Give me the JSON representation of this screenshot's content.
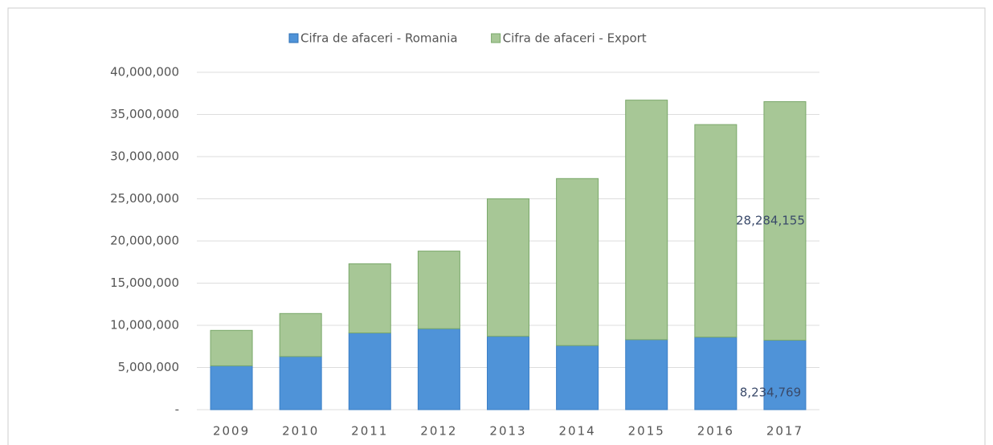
{
  "chart_data": {
    "type": "stacked_bar",
    "categories": [
      "2009",
      "2010",
      "2011",
      "2012",
      "2013",
      "2014",
      "2015",
      "2016",
      "2017"
    ],
    "series": [
      {
        "name": "Cifra de afaceri - Romania",
        "color": "#4f93d8",
        "values": [
          5200000,
          6300000,
          9100000,
          9600000,
          8700000,
          7600000,
          8300000,
          8600000,
          8234769
        ],
        "value_labels": [
          null,
          null,
          null,
          null,
          null,
          null,
          null,
          null,
          "8,234,769"
        ]
      },
      {
        "name": "Cifra de afaceri - Export",
        "color": "#a7c796",
        "values": [
          4200000,
          5100000,
          8200000,
          9200000,
          16300000,
          19800000,
          28400000,
          25200000,
          28284155
        ],
        "value_labels": [
          null,
          null,
          null,
          null,
          null,
          null,
          null,
          null,
          "28,284,155"
        ]
      }
    ],
    "ylim": [
      0,
      40000000
    ],
    "yticks": [
      {
        "value": 0,
        "label": "-"
      },
      {
        "value": 5000000,
        "label": "5,000,000"
      },
      {
        "value": 10000000,
        "label": "10,000,000"
      },
      {
        "value": 15000000,
        "label": "15,000,000"
      },
      {
        "value": 20000000,
        "label": "20,000,000"
      },
      {
        "value": 25000000,
        "label": "25,000,000"
      },
      {
        "value": 30000000,
        "label": "30,000,000"
      },
      {
        "value": 35000000,
        "label": "35,000,000"
      },
      {
        "value": 40000000,
        "label": "40,000,000"
      }
    ],
    "grid": true,
    "legend": "top"
  }
}
